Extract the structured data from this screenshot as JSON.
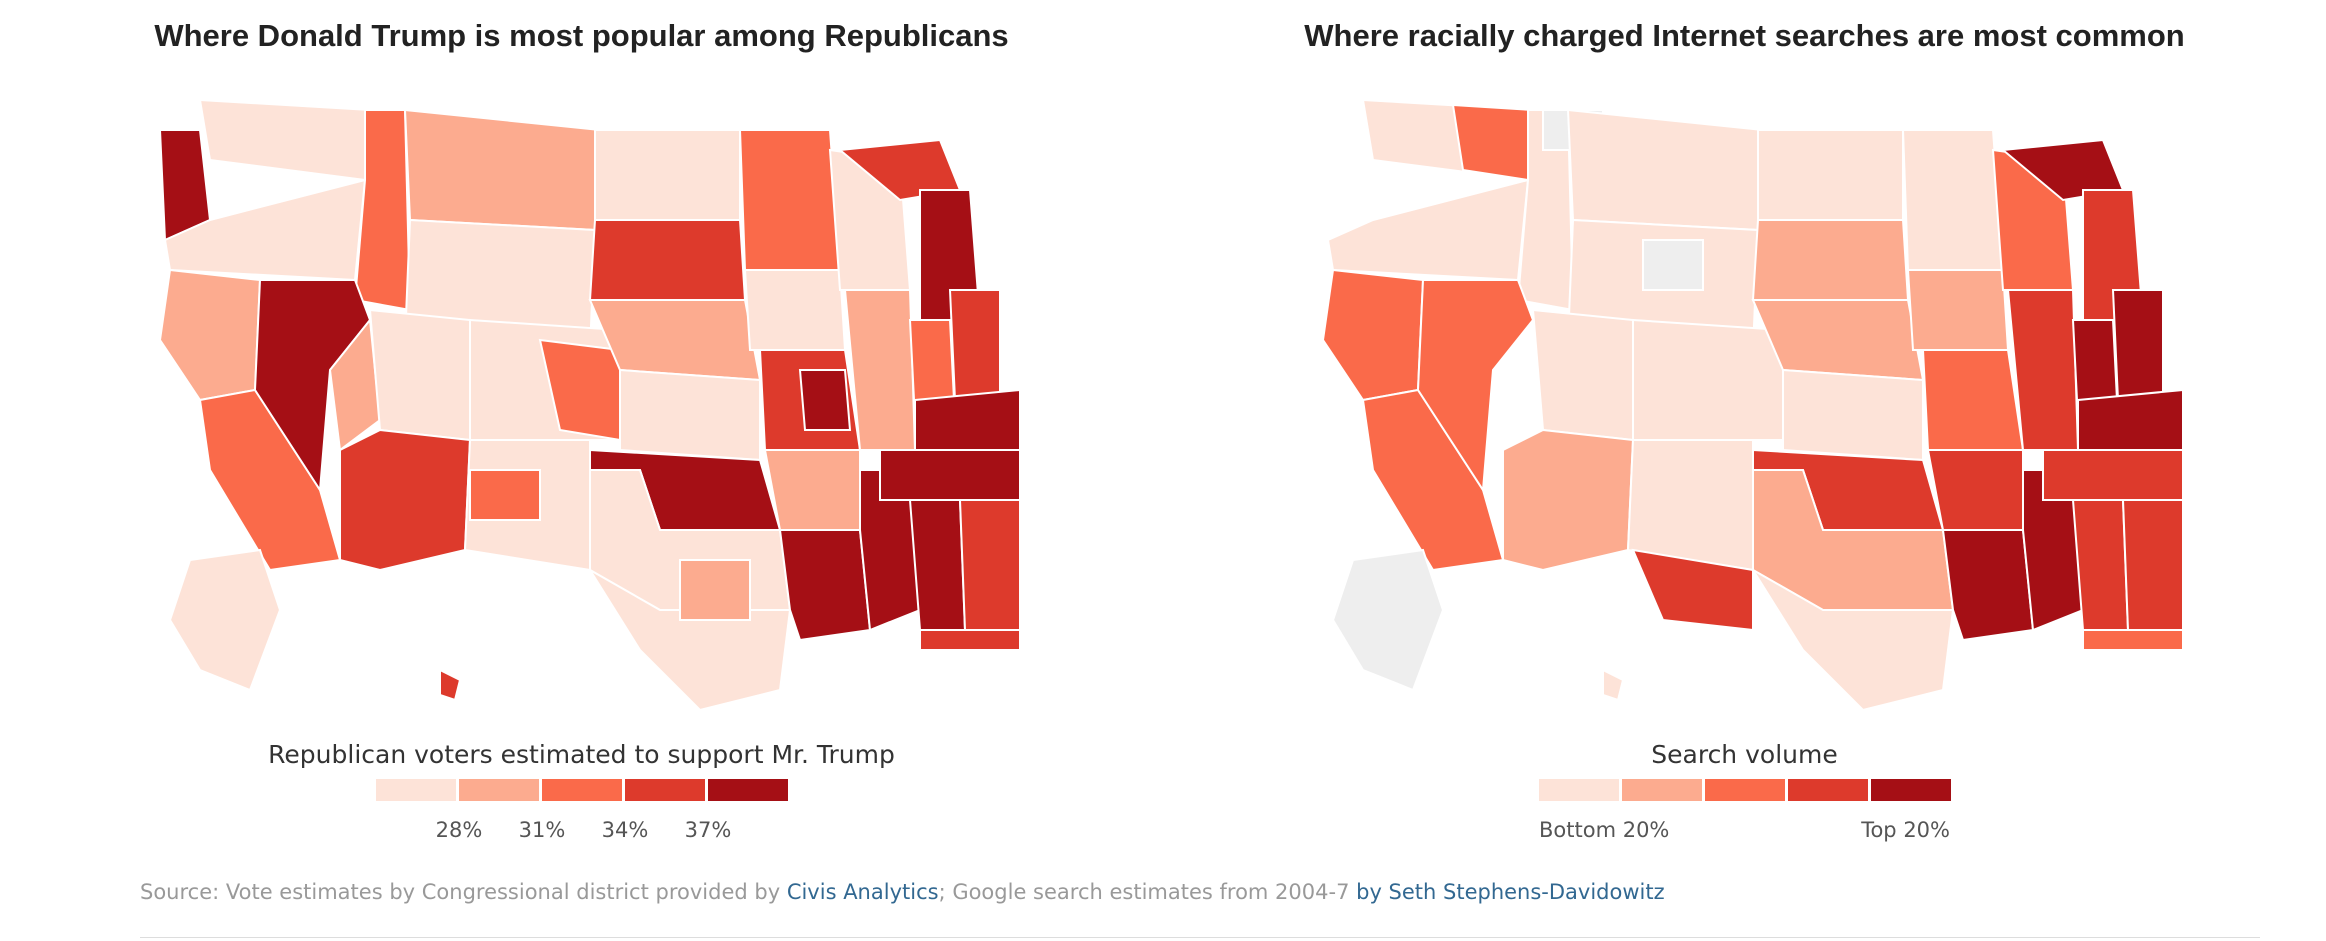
{
  "colors": {
    "scale": [
      "#fde3d8",
      "#fcab8f",
      "#fa6a4a",
      "#dd3a2c",
      "#a50f15"
    ],
    "nodata": "#eeeeee",
    "border": "#ffffff",
    "link": "#326891"
  },
  "left_map": {
    "title": "Where Donald Trump is most popular among Republicans",
    "legend_title": "Republican voters estimated to support Mr. Trump",
    "ticks": [
      "28%",
      "31%",
      "34%",
      "37%"
    ]
  },
  "right_map": {
    "title": "Where racially charged Internet searches are most common",
    "legend_title": "Search volume",
    "tick_low": "Bottom 20%",
    "tick_high": "Top 20%"
  },
  "source": {
    "prefix": "Source: Vote estimates by Congressional district provided by ",
    "link1": "Civis Analytics",
    "middle": "; Google search estimates from 2004-7 ",
    "link2": "by Seth Stephens-Davidowitz"
  }
}
